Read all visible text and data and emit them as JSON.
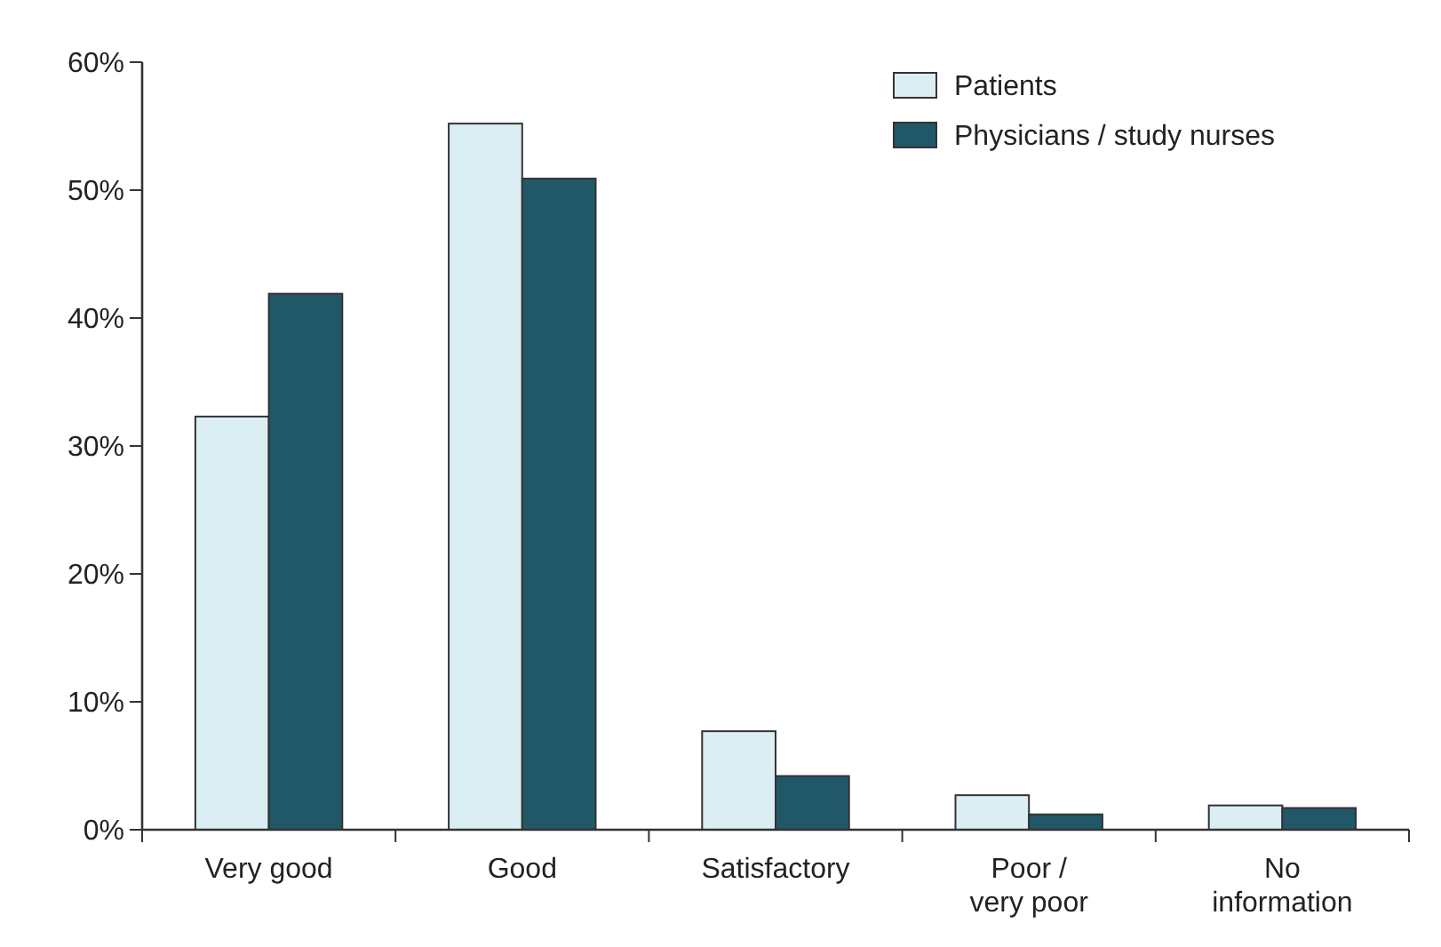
{
  "chart_data": {
    "type": "bar",
    "categories": [
      "Very good",
      "Good",
      "Satisfactory",
      "Poor /\nvery poor",
      "No\ninformation"
    ],
    "series": [
      {
        "name": "Patients",
        "color": "#daeef3",
        "values": [
          32.3,
          55.2,
          7.7,
          2.7,
          1.9
        ]
      },
      {
        "name": "Physicians / study nurses",
        "color": "#215868",
        "values": [
          41.9,
          50.9,
          4.2,
          1.2,
          1.7
        ]
      }
    ],
    "ylim": [
      0,
      60
    ],
    "yticks": [
      {
        "value": 0,
        "label": "0%"
      },
      {
        "value": 10,
        "label": "10%"
      },
      {
        "value": 20,
        "label": "20%"
      },
      {
        "value": 30,
        "label": "30%"
      },
      {
        "value": 40,
        "label": "40%"
      },
      {
        "value": 50,
        "label": "50%"
      },
      {
        "value": 60,
        "label": "60%"
      }
    ],
    "legend": "top right"
  }
}
